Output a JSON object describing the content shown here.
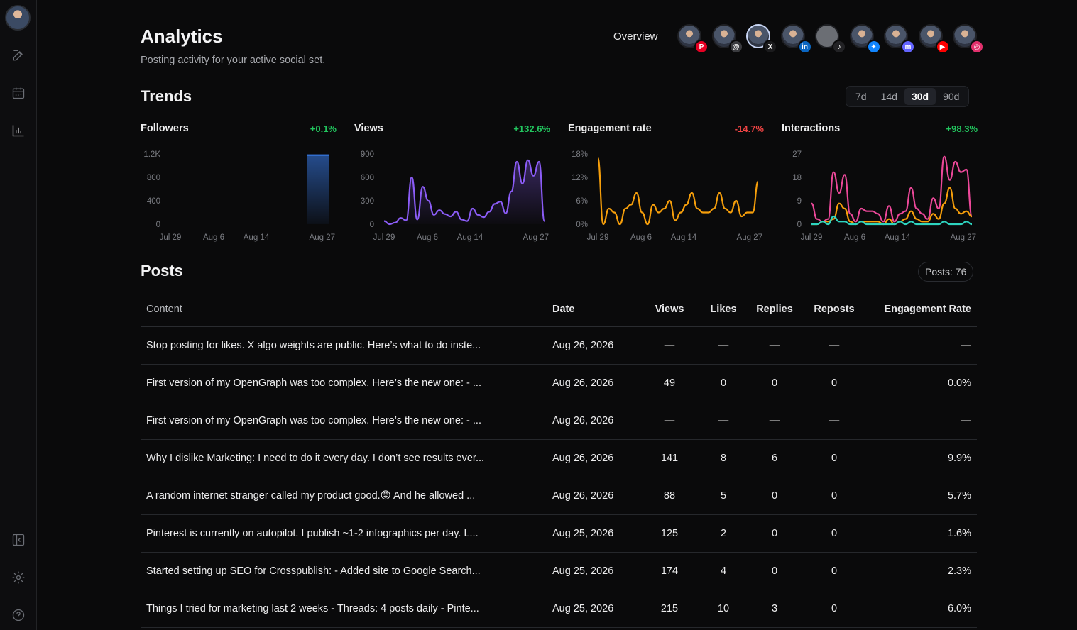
{
  "sidebar": {
    "icons": [
      "compose-icon",
      "calendar-icon",
      "analytics-icon",
      "collapse-sidebar-icon",
      "settings-icon",
      "help-icon"
    ]
  },
  "header": {
    "title": "Analytics",
    "subtitle": "Posting activity for your active social set.",
    "overview_label": "Overview"
  },
  "accounts": [
    {
      "platform": "Pinterest",
      "color": "#e60023",
      "glyph": "P"
    },
    {
      "platform": "Threads",
      "color": "#3a3b3f",
      "glyph": "@"
    },
    {
      "platform": "X",
      "color": "#1b1b1d",
      "glyph": "X",
      "selected": true
    },
    {
      "platform": "LinkedIn",
      "color": "#0a66c2",
      "glyph": "in"
    },
    {
      "platform": "TikTok",
      "color": "#222225",
      "glyph": "♪",
      "dim": true
    },
    {
      "platform": "Bluesky",
      "color": "#1185fe",
      "glyph": "✦"
    },
    {
      "platform": "Mastodon",
      "color": "#6364ff",
      "glyph": "m"
    },
    {
      "platform": "YouTube",
      "color": "#ff0000",
      "glyph": "▶"
    },
    {
      "platform": "Instagram",
      "color": "#e1306c",
      "glyph": "◎"
    }
  ],
  "trends": {
    "title": "Trends",
    "ranges": [
      "7d",
      "14d",
      "30d",
      "90d"
    ],
    "active_range": "30d"
  },
  "charts": [
    {
      "name": "Followers",
      "delta": "+0.1%",
      "delta_color": "#22c55e"
    },
    {
      "name": "Views",
      "delta": "+132.6%",
      "delta_color": "#22c55e"
    },
    {
      "name": "Engagement rate",
      "delta": "-14.7%",
      "delta_color": "#ef4444"
    },
    {
      "name": "Interactions",
      "delta": "+98.3%",
      "delta_color": "#22c55e"
    }
  ],
  "chart_data": [
    {
      "type": "bar",
      "title": "Followers",
      "x_ticks": [
        "Jul 29",
        "Aug 6",
        "Aug 14",
        "Aug 27"
      ],
      "y_ticks": [
        "1.2K",
        "800",
        "400",
        "0"
      ],
      "ylim": [
        0,
        1200
      ],
      "series": [
        {
          "color": "#3b82f6",
          "values": [
            1180
          ]
        }
      ],
      "bar_at": "Aug 27"
    },
    {
      "type": "area",
      "title": "Views",
      "x_ticks": [
        "Jul 29",
        "Aug 6",
        "Aug 14",
        "Aug 27"
      ],
      "y_ticks": [
        "900",
        "600",
        "300",
        "0"
      ],
      "ylim": [
        0,
        900
      ],
      "series": [
        {
          "color": "#8b5cf6",
          "values": [
            40,
            0,
            20,
            80,
            50,
            600,
            60,
            480,
            300,
            120,
            180,
            130,
            100,
            160,
            60,
            40,
            200,
            120,
            90,
            160,
            260,
            290,
            140,
            420,
            800,
            520,
            820,
            620,
            800,
            40
          ]
        }
      ]
    },
    {
      "type": "line",
      "title": "Engagement rate",
      "x_ticks": [
        "Jul 29",
        "Aug 6",
        "Aug 14",
        "Aug 27"
      ],
      "y_ticks": [
        "18%",
        "12%",
        "6%",
        "0%"
      ],
      "ylim": [
        0,
        18
      ],
      "series": [
        {
          "color": "#f59e0b",
          "values": [
            17,
            0,
            4,
            3,
            0,
            4,
            5,
            8,
            3,
            0,
            5,
            3,
            4,
            6,
            1,
            3,
            5,
            8,
            4,
            3,
            3,
            4,
            8,
            4,
            3,
            6,
            2,
            3,
            3,
            11
          ]
        }
      ]
    },
    {
      "type": "line",
      "title": "Interactions",
      "x_ticks": [
        "Jul 29",
        "Aug 6",
        "Aug 14",
        "Aug 27"
      ],
      "y_ticks": [
        "27",
        "18",
        "9",
        "0"
      ],
      "ylim": [
        0,
        27
      ],
      "series": [
        {
          "color": "#ec4899",
          "values": [
            8,
            2,
            1,
            2,
            20,
            12,
            19,
            4,
            1,
            6,
            5,
            5,
            4,
            1,
            7,
            1,
            4,
            5,
            14,
            6,
            4,
            2,
            10,
            6,
            26,
            17,
            24,
            20,
            21,
            3
          ]
        },
        {
          "color": "#f59e0b",
          "values": [
            0,
            0,
            1,
            1,
            2,
            8,
            6,
            1,
            0,
            1,
            1,
            1,
            1,
            0,
            2,
            0,
            1,
            2,
            5,
            2,
            1,
            1,
            4,
            2,
            8,
            14,
            6,
            4,
            5,
            3
          ]
        },
        {
          "color": "#2dd4bf",
          "values": [
            0,
            0,
            1,
            0,
            3,
            1,
            1,
            0,
            0,
            1,
            0,
            0,
            0,
            0,
            0,
            0,
            1,
            0,
            1,
            0,
            0,
            0,
            0,
            0,
            1,
            0,
            0,
            0,
            1,
            0
          ]
        }
      ]
    }
  ],
  "posts": {
    "title": "Posts",
    "count_label": "Posts: 76",
    "columns": [
      "Content",
      "Date",
      "Views",
      "Likes",
      "Replies",
      "Reposts",
      "Engagement Rate"
    ],
    "rows": [
      {
        "content": "Stop posting for likes. X algo weights are public. Here’s what to do inste...",
        "date": "Aug 26, 2026",
        "views": "—",
        "likes": "—",
        "replies": "—",
        "reposts": "—",
        "er": "—"
      },
      {
        "content": "First version of my OpenGraph was too complex. Here’s the new one: - ...",
        "date": "Aug 26, 2026",
        "views": "49",
        "likes": "0",
        "replies": "0",
        "reposts": "0",
        "er": "0.0%"
      },
      {
        "content": "First version of my OpenGraph was too complex. Here’s the new one: - ...",
        "date": "Aug 26, 2026",
        "views": "—",
        "likes": "—",
        "replies": "—",
        "reposts": "—",
        "er": "—"
      },
      {
        "content": "Why I dislike Marketing: I need to do it every day. I don’t see results ever...",
        "date": "Aug 26, 2026",
        "views": "141",
        "likes": "8",
        "replies": "6",
        "reposts": "0",
        "er": "9.9%"
      },
      {
        "content": "A random internet stranger called my product good.😡 And he allowed ...",
        "date": "Aug 26, 2026",
        "views": "88",
        "likes": "5",
        "replies": "0",
        "reposts": "0",
        "er": "5.7%"
      },
      {
        "content": "Pinterest is currently on autopilot. I publish ~1-2 infographics per day. L...",
        "date": "Aug 25, 2026",
        "views": "125",
        "likes": "2",
        "replies": "0",
        "reposts": "0",
        "er": "1.6%"
      },
      {
        "content": "Started setting up SEO for Crosspublish: - Added site to Google Search...",
        "date": "Aug 25, 2026",
        "views": "174",
        "likes": "4",
        "replies": "0",
        "reposts": "0",
        "er": "2.3%"
      },
      {
        "content": "Things I tried for marketing last 2 weeks - Threads: 4 posts daily - Pinte...",
        "date": "Aug 25, 2026",
        "views": "215",
        "likes": "10",
        "replies": "3",
        "reposts": "0",
        "er": "6.0%"
      }
    ]
  }
}
